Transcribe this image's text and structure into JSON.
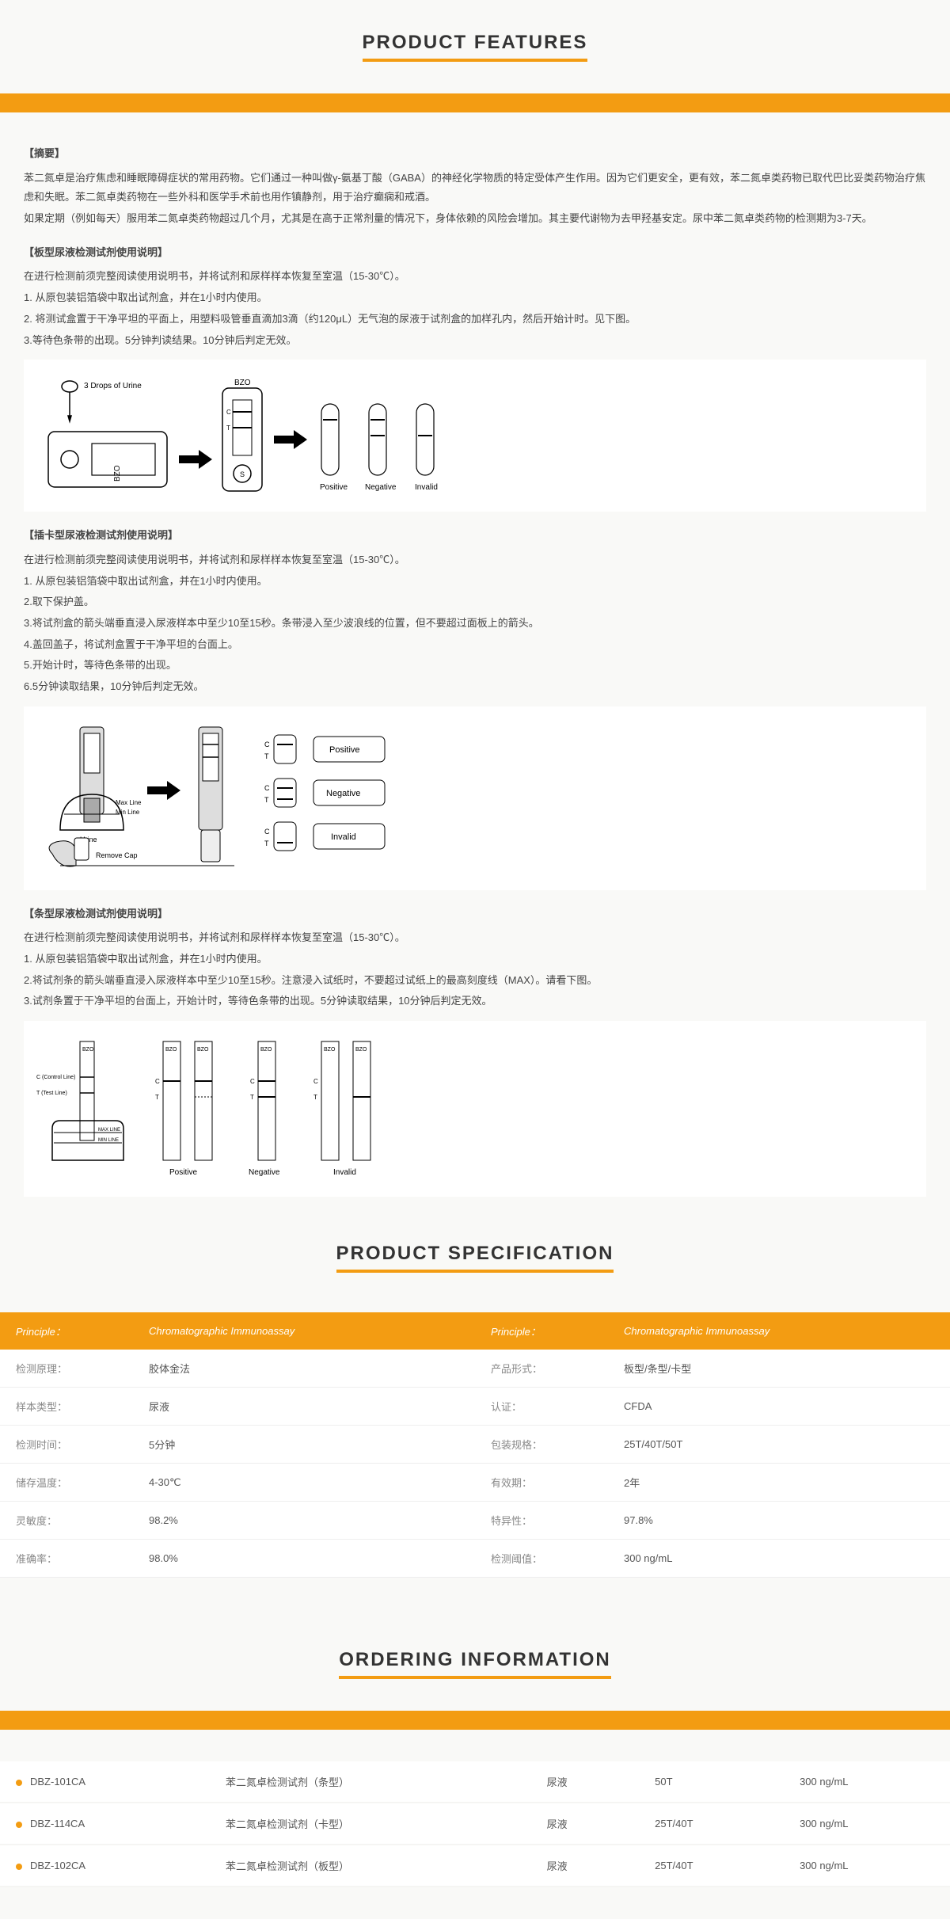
{
  "sections": {
    "features": "PRODUCT FEATURES",
    "spec": "PRODUCT SPECIFICATION",
    "order": "ORDERING INFORMATION"
  },
  "summary": {
    "hd": "【摘要】",
    "p1": "苯二氮卓是治疗焦虑和睡眠障碍症状的常用药物。它们通过一种叫做γ-氨基丁酸（GABA）的神经化学物质的特定受体产生作用。因为它们更安全，更有效，苯二氮卓类药物已取代巴比妥类药物治疗焦虑和失眠。苯二氮卓类药物在一些外科和医学手术前也用作镇静剂，用于治疗癫痫和戒酒。",
    "p2": "如果定期（例如每天）服用苯二氮卓类药物超过几个月，尤其是在高于正常剂量的情况下，身体依赖的风险会增加。其主要代谢物为去甲羟基安定。尿中苯二氮卓类药物的检测期为3-7天。"
  },
  "panel": {
    "hd": "【板型尿液检测试剂使用说明】",
    "intro": "在进行检测前须完整阅读使用说明书，并将试剂和尿样样本恢复至室温（15-30℃）。",
    "s1": "1. 从原包装铝箔袋中取出试剂盒，并在1小时内使用。",
    "s2": "2. 将测试盒置于干净平坦的平面上，用塑料吸管垂直滴加3滴（约120μL）无气泡的尿液于试剂盒的加样孔内，然后开始计时。见下图。",
    "s3": "3.等待色条带的出现。5分钟判读结果。10分钟后判定无效。"
  },
  "card": {
    "hd": "【插卡型尿液检测试剂使用说明】",
    "intro": "在进行检测前须完整阅读使用说明书，并将试剂和尿样样本恢复至室温（15-30℃）。",
    "s1": "1. 从原包装铝箔袋中取出试剂盒，并在1小时内使用。",
    "s2": "2.取下保护盖。",
    "s3": "3.将试剂盒的箭头端垂直浸入尿液样本中至少10至15秒。条带浸入至少波浪线的位置，但不要超过面板上的箭头。",
    "s4": "4.盖回盖子，将试剂盒置于干净平坦的台面上。",
    "s5": "5.开始计时，等待色条带的出现。",
    "s6": "6.5分钟读取结果，10分钟后判定无效。"
  },
  "strip": {
    "hd": "【条型尿液检测试剂使用说明】",
    "intro": "在进行检测前须完整阅读使用说明书，并将试剂和尿样样本恢复至室温（15-30℃）。",
    "s1": "1. 从原包装铝箔袋中取出试剂盒，并在1小时内使用。",
    "s2": "2.将试剂条的箭头端垂直浸入尿液样本中至少10至15秒。注意浸入试纸时，不要超过试纸上的最高刻度线（MAX）。请看下图。",
    "s3": "3.试剂条置于干净平坦的台面上，开始计时，等待色条带的出现。5分钟读取结果，10分钟后判定无效。"
  },
  "diag": {
    "drops": "3 Drops of Urine",
    "bzo": "BZO",
    "pos": "Positive",
    "neg": "Negative",
    "inv": "Invalid",
    "c": "C",
    "t": "T",
    "urine": "Urine",
    "maxline": "Max Line",
    "minline": "Min Line",
    "remove": "Remove Cap",
    "cline": "C (Control Line)",
    "tline": "T (Test Line)",
    "maxmark": "MAX LINE",
    "minmark": "MIN LINE"
  },
  "spec": {
    "th1": "Principle：",
    "th2": "Chromatographic Immunoassay",
    "th3": "Principle：",
    "th4": "Chromatographic Immunoassay",
    "rows": [
      {
        "l1": "检测原理：",
        "v1": "胶体金法",
        "l2": "产品形式：",
        "v2": "板型/条型/卡型"
      },
      {
        "l1": "样本类型：",
        "v1": "尿液",
        "l2": "认证：",
        "v2": "CFDA"
      },
      {
        "l1": "检测时间：",
        "v1": "5分钟",
        "l2": "包装规格：",
        "v2": "25T/40T/50T"
      },
      {
        "l1": "储存温度：",
        "v1": "4-30℃",
        "l2": "有效期：",
        "v2": "2年"
      },
      {
        "l1": "灵敏度：",
        "v1": "98.2%",
        "l2": "特异性：",
        "v2": "97.8%"
      },
      {
        "l1": "准确率：",
        "v1": "98.0%",
        "l2": "检测阈值：",
        "v2": "300 ng/mL"
      }
    ]
  },
  "order": {
    "rows": [
      {
        "code": "DBZ-101CA",
        "name": "苯二氮卓检测试剂（条型）",
        "sample": "尿液",
        "pkg": "50T",
        "cutoff": "300 ng/mL"
      },
      {
        "code": "DBZ-114CA",
        "name": "苯二氮卓检测试剂（卡型）",
        "sample": "尿液",
        "pkg": "25T/40T",
        "cutoff": "300 ng/mL"
      },
      {
        "code": "DBZ-102CA",
        "name": "苯二氮卓检测试剂（板型）",
        "sample": "尿液",
        "pkg": "25T/40T",
        "cutoff": "300 ng/mL"
      }
    ]
  },
  "colors": {
    "accent": "#f39c12"
  }
}
